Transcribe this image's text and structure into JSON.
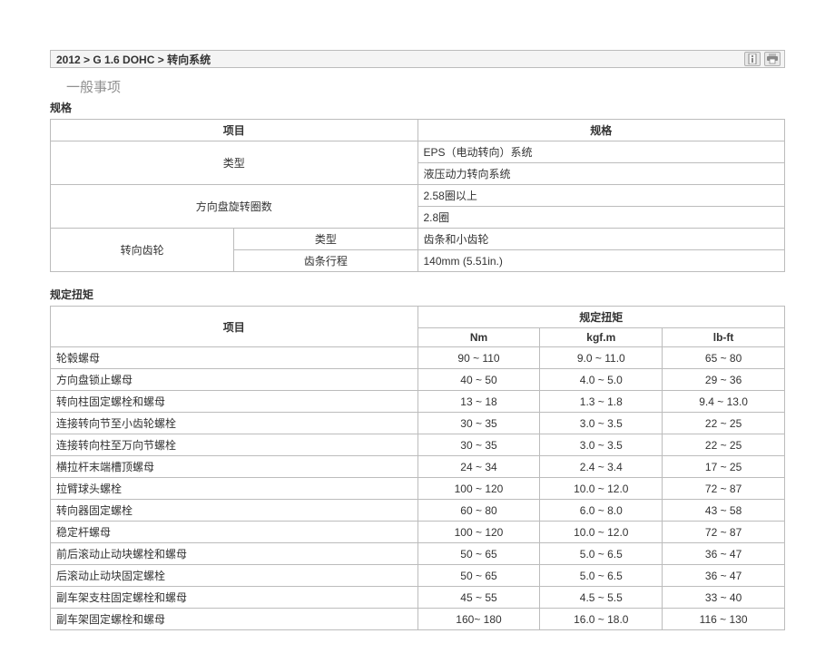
{
  "header": {
    "breadcrumb": "2012 > G 1.6 DOHC > 转向系统"
  },
  "section_general": "一般事项",
  "spec": {
    "title": "规格",
    "col_item": "项目",
    "col_spec": "规格",
    "rows": {
      "type_label": "类型",
      "type_val1": "EPS（电动转向）系统",
      "type_val2": "液压动力转向系统",
      "turns_label": "方向盘旋转圈数",
      "turns_val1": "2.58圈以上",
      "turns_val2": "2.8圈",
      "gear_label": "转向齿轮",
      "gear_type_label": "类型",
      "gear_type_val": "齿条和小齿轮",
      "gear_travel_label": "齿条行程",
      "gear_travel_val": "140mm (5.51in.)"
    }
  },
  "torque": {
    "title": "规定扭矩",
    "col_item": "项目",
    "col_torque": "规定扭矩",
    "col_nm": "Nm",
    "col_kgf": "kgf.m",
    "col_lbft": "lb-ft",
    "rows": [
      {
        "label": "轮毂螺母",
        "nm": "90 ~ 110",
        "kgf": "9.0 ~ 11.0",
        "lbft": "65 ~ 80"
      },
      {
        "label": "方向盘锁止螺母",
        "nm": "40 ~ 50",
        "kgf": "4.0 ~ 5.0",
        "lbft": "29 ~ 36"
      },
      {
        "label": "转向柱固定螺栓和螺母",
        "nm": "13 ~ 18",
        "kgf": "1.3 ~ 1.8",
        "lbft": "9.4 ~ 13.0"
      },
      {
        "label": "连接转向节至小齿轮螺栓",
        "nm": "30 ~ 35",
        "kgf": "3.0 ~ 3.5",
        "lbft": "22 ~ 25"
      },
      {
        "label": "连接转向柱至万向节螺栓",
        "nm": "30 ~ 35",
        "kgf": "3.0 ~ 3.5",
        "lbft": "22 ~ 25"
      },
      {
        "label": "横拉杆末端槽顶螺母",
        "nm": "24 ~ 34",
        "kgf": "2.4 ~ 3.4",
        "lbft": "17 ~ 25"
      },
      {
        "label": "拉臂球头螺栓",
        "nm": "100 ~ 120",
        "kgf": "10.0 ~ 12.0",
        "lbft": "72 ~ 87"
      },
      {
        "label": "转向器固定螺栓",
        "nm": "60 ~ 80",
        "kgf": "6.0 ~ 8.0",
        "lbft": "43 ~ 58"
      },
      {
        "label": "稳定杆螺母",
        "nm": "100 ~ 120",
        "kgf": "10.0 ~ 12.0",
        "lbft": "72 ~ 87"
      },
      {
        "label": "前后滚动止动块螺栓和螺母",
        "nm": "50 ~ 65",
        "kgf": "5.0 ~ 6.5",
        "lbft": "36 ~ 47"
      },
      {
        "label": "后滚动止动块固定螺栓",
        "nm": "50 ~ 65",
        "kgf": "5.0 ~ 6.5",
        "lbft": "36 ~ 47"
      },
      {
        "label": "副车架支柱固定螺栓和螺母",
        "nm": "45 ~ 55",
        "kgf": "4.5 ~ 5.5",
        "lbft": "33 ~ 40"
      },
      {
        "label": "副车架固定螺栓和螺母",
        "nm": "160~ 180",
        "kgf": "16.0 ~ 18.0",
        "lbft": "116 ~ 130"
      }
    ]
  }
}
